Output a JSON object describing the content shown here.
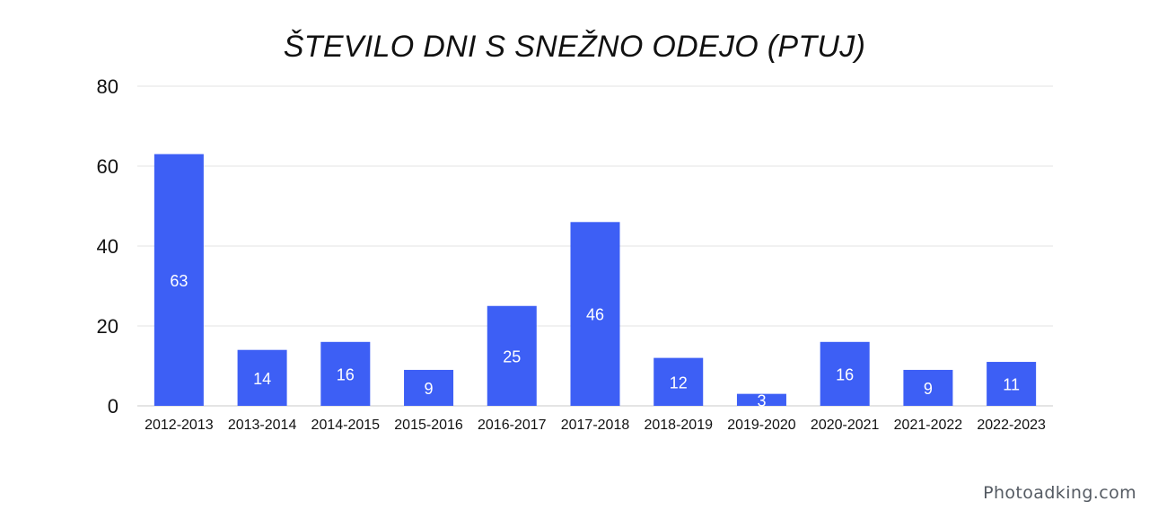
{
  "chart_data": {
    "type": "bar",
    "title": "ŠTEVILO DNI S SNEŽNO ODEJO (PTUJ)",
    "xlabel": "",
    "ylabel": "",
    "categories": [
      "2012-2013",
      "2013-2014",
      "2014-2015",
      "2015-2016",
      "2016-2017",
      "2017-2018",
      "2018-2019",
      "2019-2020",
      "2020-2021",
      "2021-2022",
      "2022-2023"
    ],
    "values": [
      63,
      14,
      16,
      9,
      25,
      46,
      12,
      3,
      16,
      9,
      11
    ],
    "ylim": [
      0,
      80
    ],
    "yticks": [
      "0",
      "20",
      "40",
      "60",
      "80"
    ],
    "data_labels": [
      "63",
      "14",
      "16",
      "9",
      "25",
      "46",
      "12",
      "3",
      "16",
      "9",
      "11"
    ],
    "grid": true,
    "legend": "none",
    "bar_color": "#3d5ff5",
    "label_color": "#ffffff"
  },
  "watermark": "Photoadking.com"
}
